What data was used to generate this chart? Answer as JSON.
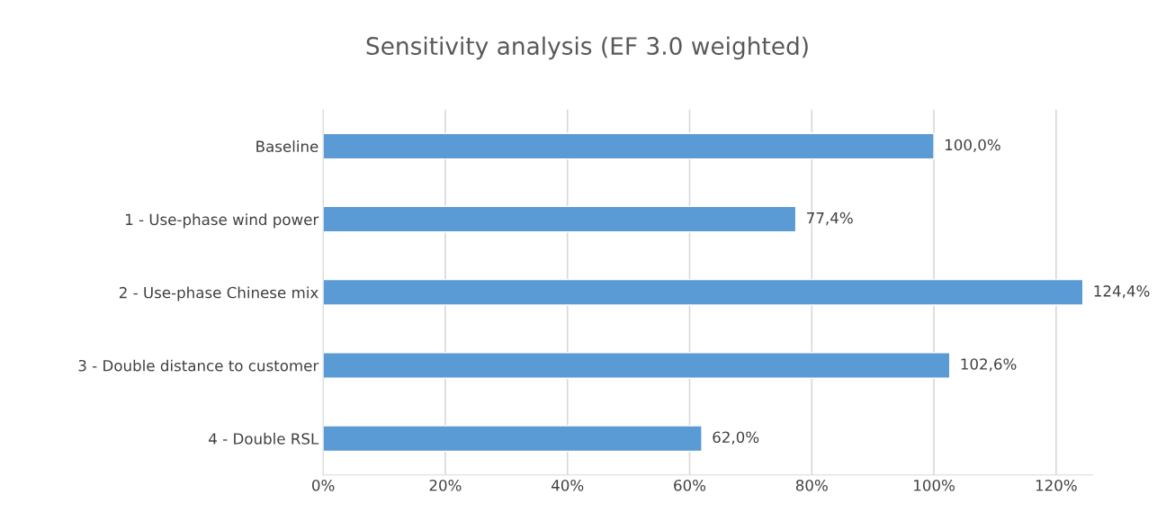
{
  "chart_data": {
    "type": "bar",
    "orientation": "horizontal",
    "title": "Sensitivity analysis (EF 3.0 weighted)",
    "categories": [
      "Baseline",
      "1 - Use-phase wind power",
      "2 - Use-phase Chinese mix",
      "3 - Double distance to customer",
      "4 - Double RSL"
    ],
    "values": [
      100.0,
      77.4,
      124.4,
      102.6,
      62.0
    ],
    "value_labels": [
      "100,0%",
      "77,4%",
      "124,4%",
      "102,6%",
      "62,0%"
    ],
    "color": "#5b9bd5",
    "xlim": [
      0,
      126
    ],
    "xticks": [
      {
        "value": 0,
        "label": "0%"
      },
      {
        "value": 20,
        "label": "20%"
      },
      {
        "value": 40,
        "label": "40%"
      },
      {
        "value": 60,
        "label": "60%"
      },
      {
        "value": 80,
        "label": "80%"
      },
      {
        "value": 100,
        "label": "100%"
      },
      {
        "value": 120,
        "label": "120%"
      }
    ],
    "grid": "x",
    "legend": false
  }
}
